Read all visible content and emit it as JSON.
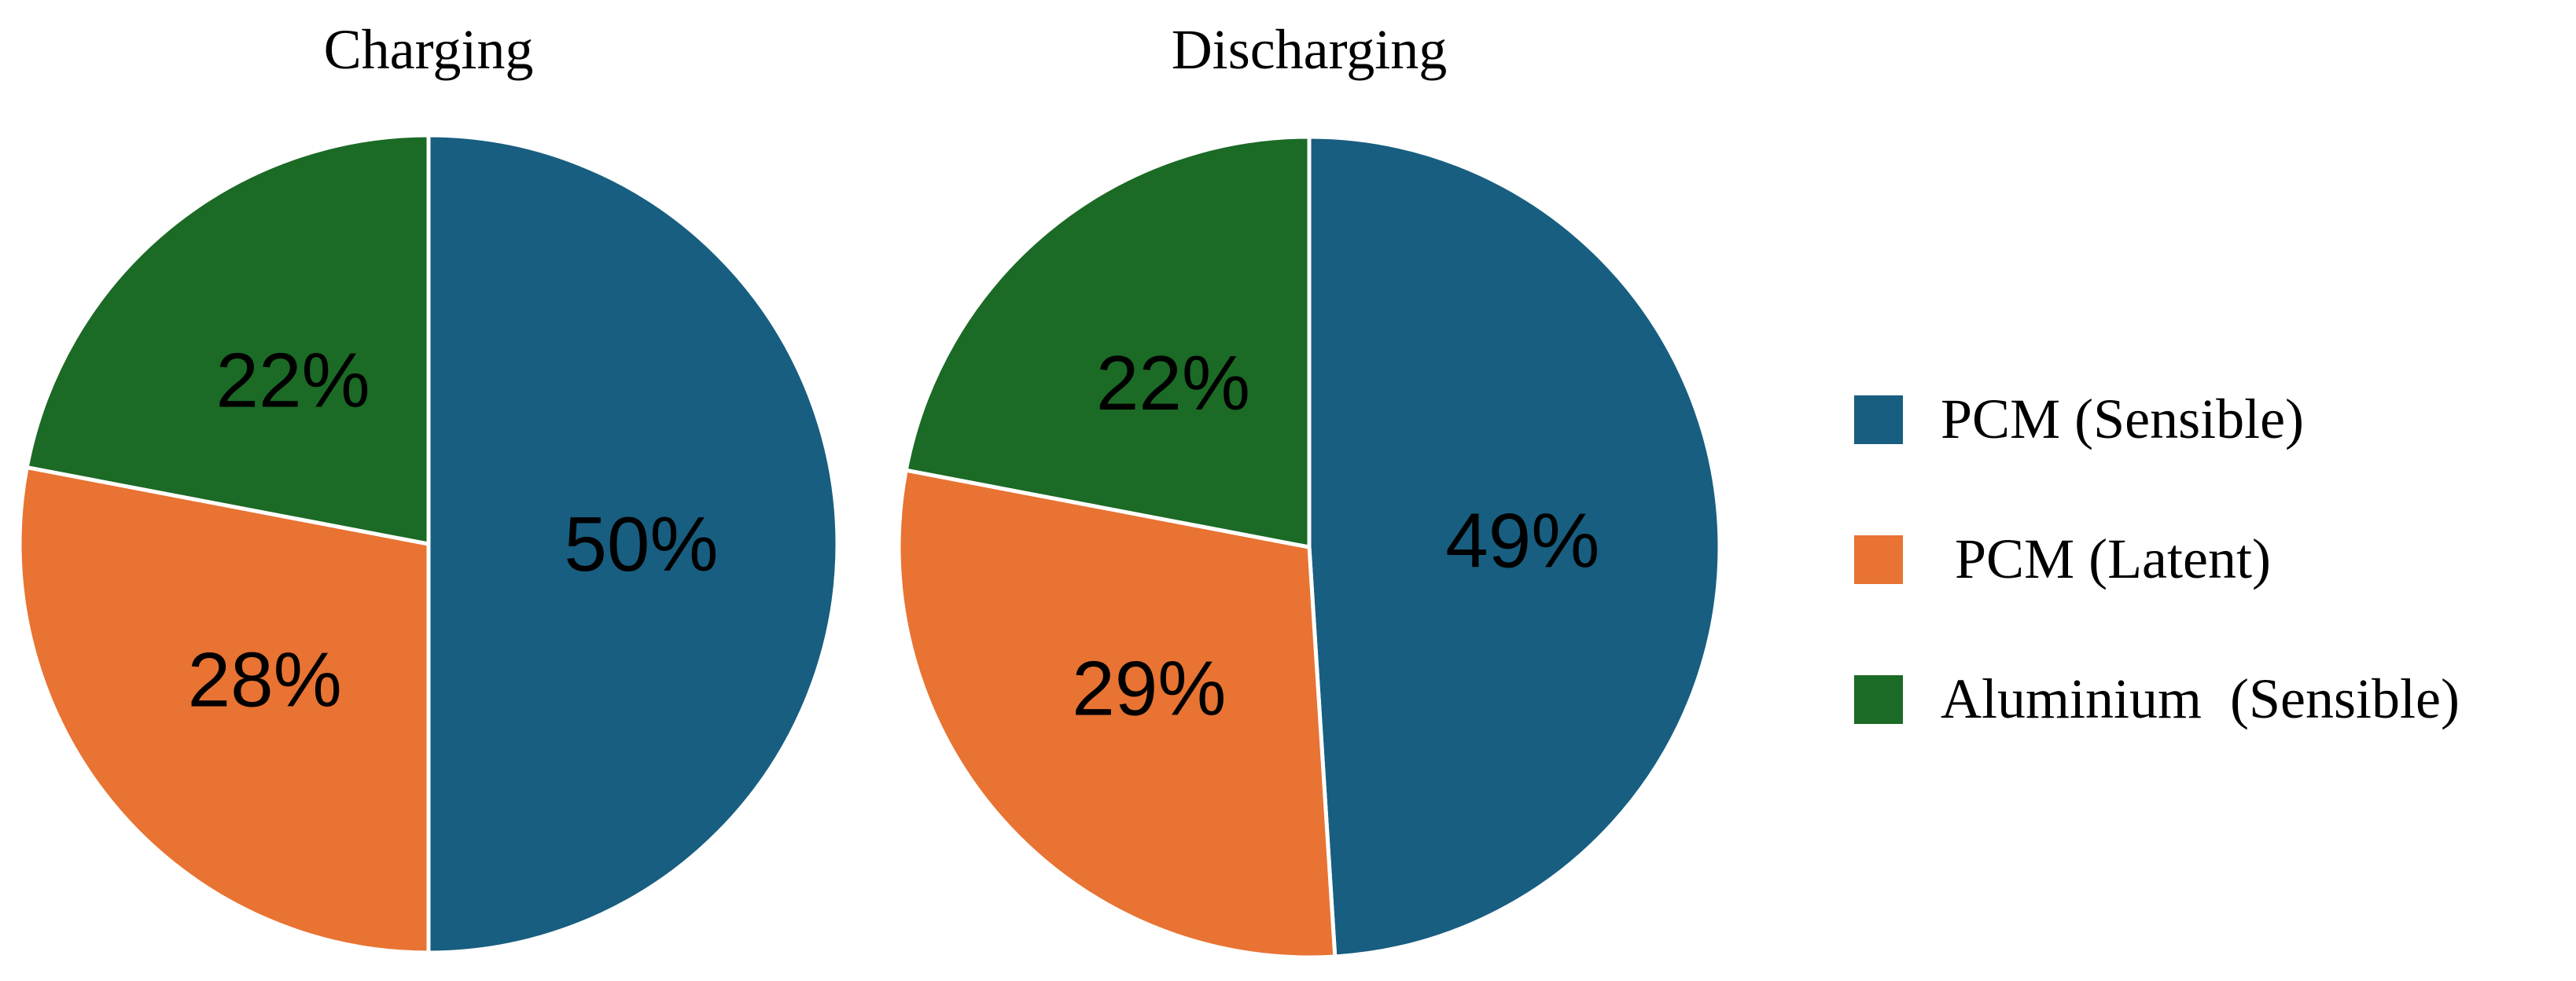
{
  "chart_data": [
    {
      "type": "pie",
      "title": "Charging",
      "categories": [
        "PCM (Sensible)",
        "PCM (Latent)",
        "Aluminium  (Sensible)"
      ],
      "values": [
        50,
        28,
        22
      ],
      "labels": [
        "50%",
        "28%",
        "22%"
      ],
      "colors": [
        "#185E80",
        "#E87333",
        "#1B6A25"
      ]
    },
    {
      "type": "pie",
      "title": "Discharging",
      "categories": [
        "PCM (Sensible)",
        "PCM (Latent)",
        "Aluminium  (Sensible)"
      ],
      "values": [
        49,
        29,
        22
      ],
      "labels": [
        "49%",
        "29%",
        "22%"
      ],
      "colors": [
        "#185E80",
        "#E87333",
        "#1B6A25"
      ]
    }
  ],
  "legend": {
    "placement": "right",
    "items": [
      {
        "label": "PCM (Sensible)",
        "color": "#185E80"
      },
      {
        "label": " PCM (Latent)",
        "color": "#E87333"
      },
      {
        "label": "Aluminium  (Sensible)",
        "color": "#1B6A25"
      }
    ]
  }
}
